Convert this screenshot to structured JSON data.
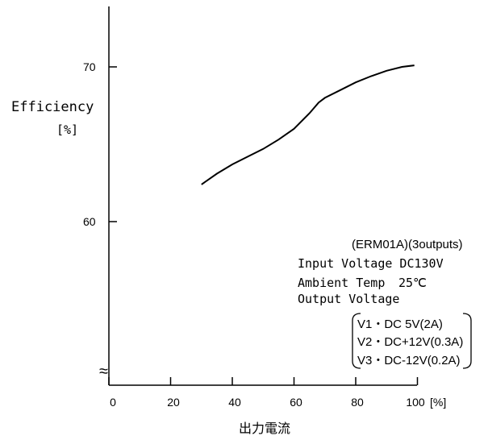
{
  "chart_data": {
    "type": "line",
    "ylabel": "Efficiency",
    "ylabel_unit": "[%]",
    "xlabel": "出力電流",
    "x_unit": "[%]",
    "x_ticks": [
      "0",
      "20",
      "40",
      "60",
      "80",
      "100"
    ],
    "y_ticks": [
      "60",
      "70"
    ],
    "xlim": [
      0,
      100
    ],
    "ylim": [
      50,
      74
    ],
    "axis_break": "≈",
    "series": [
      {
        "x": [
          30,
          35,
          40,
          45,
          50,
          55,
          60,
          65,
          68,
          70,
          75,
          80,
          85,
          90,
          95,
          99
        ],
        "y": [
          62.4,
          63.1,
          63.7,
          64.2,
          64.7,
          65.3,
          66.0,
          67.0,
          67.7,
          68.0,
          68.5,
          69.0,
          69.4,
          69.75,
          70.0,
          70.1
        ]
      }
    ]
  },
  "notes": {
    "model": "(ERM01A)(3outputs)",
    "input_voltage": "Input Voltage DC130V",
    "ambient_temp_label": "Ambient Temp",
    "ambient_temp_value": "25℃",
    "output_voltage": "Output Voltage",
    "outputs": [
      "V1・DC  5V(2A)",
      "V2・DC+12V(0.3A)",
      "V3・DC-12V(0.2A)"
    ]
  }
}
